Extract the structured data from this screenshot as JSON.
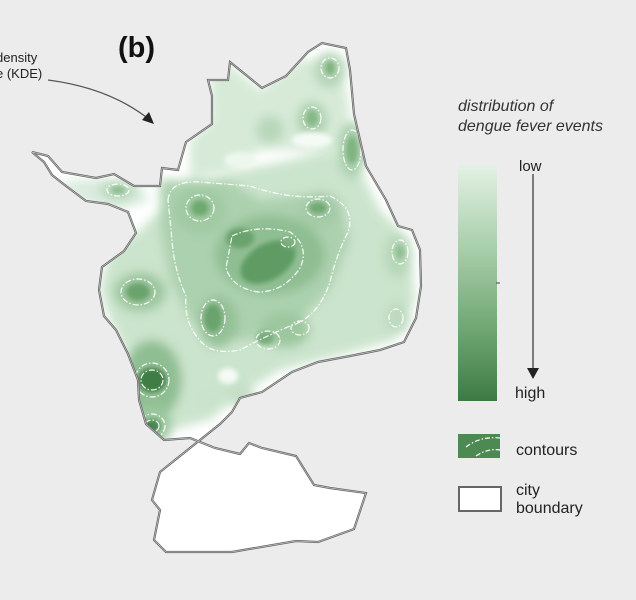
{
  "panel_label": "(b)",
  "kde_annotation": {
    "line1": "density",
    "line2": "e (KDE)"
  },
  "legend": {
    "title_line1": "distribution of",
    "title_line2": "dengue fever events",
    "low": "low",
    "high": "high",
    "contours": "contours",
    "city_boundary_line1": "city",
    "city_boundary_line2": "boundary"
  },
  "colors": {
    "background": "#ececec",
    "density_low": "#e3f1e4",
    "density_high": "#3d7a43",
    "boundary": "#666666",
    "contour_line": "#ffffff"
  }
}
